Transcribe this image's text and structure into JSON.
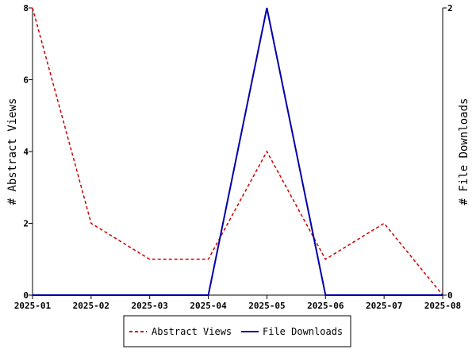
{
  "chart_data": {
    "type": "line",
    "title": "",
    "categories": [
      "2025-01",
      "2025-02",
      "2025-03",
      "2025-04",
      "2025-05",
      "2025-06",
      "2025-07",
      "2025-08"
    ],
    "xlabel": "",
    "y_left": {
      "label": "# Abstract Views",
      "ylim": [
        0,
        8
      ],
      "ticks": [
        "0",
        "2",
        "4",
        "6",
        "8"
      ]
    },
    "y_right": {
      "label": "# File Downloads",
      "ylim": [
        0,
        2
      ],
      "ticks": [
        "0",
        "2"
      ]
    },
    "series": [
      {
        "name": "Abstract Views",
        "axis": "left",
        "style": "dashed",
        "color": "#cc0000",
        "values": [
          8,
          2,
          1,
          1,
          4,
          1,
          2,
          0
        ]
      },
      {
        "name": "File Downloads",
        "axis": "right",
        "style": "solid",
        "color": "#0000aa",
        "values": [
          0,
          0,
          0,
          0,
          2,
          0,
          0,
          0
        ]
      }
    ],
    "legend_position": "bottom-center",
    "grid": false
  }
}
